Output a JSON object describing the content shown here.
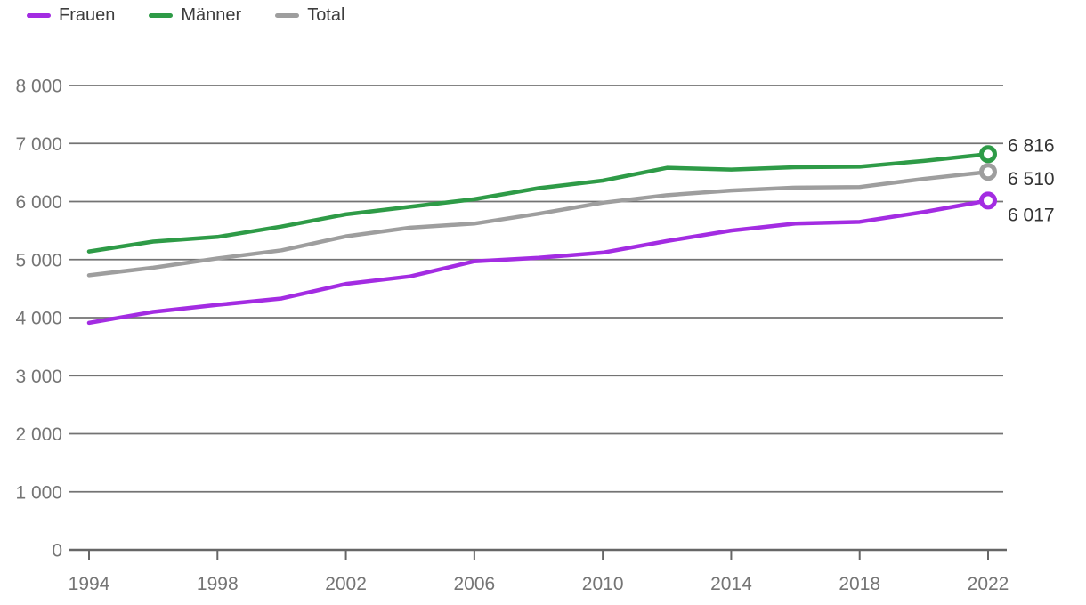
{
  "chart_data": {
    "type": "line",
    "title": "",
    "xlabel": "",
    "ylabel": "",
    "x_years": [
      1994,
      1996,
      1998,
      2000,
      2002,
      2004,
      2006,
      2008,
      2010,
      2012,
      2014,
      2016,
      2018,
      2020,
      2022
    ],
    "series": [
      {
        "name": "Frauen",
        "color": "#a32ce2",
        "values": [
          3910,
          4100,
          4220,
          4330,
          4580,
          4710,
          4970,
          5030,
          5120,
          5320,
          5500,
          5620,
          5650,
          5820,
          6017
        ],
        "end_label": "6 017"
      },
      {
        "name": "Männer",
        "color": "#2e9b47",
        "values": [
          5140,
          5310,
          5390,
          5570,
          5780,
          5910,
          6040,
          6230,
          6360,
          6580,
          6550,
          6590,
          6600,
          6700,
          6816
        ],
        "end_label": "6 816"
      },
      {
        "name": "Total",
        "color": "#9e9e9e",
        "values": [
          4730,
          4860,
          5020,
          5160,
          5400,
          5550,
          5620,
          5790,
          5980,
          6110,
          6190,
          6240,
          6250,
          6390,
          6510
        ],
        "end_label": "6 510"
      }
    ],
    "ylim": [
      0,
      8000
    ],
    "ytick_step": 1000,
    "yticks_labels": [
      "0",
      "1 000",
      "2 000",
      "3 000",
      "4 000",
      "5 000",
      "6 000",
      "7 000",
      "8 000"
    ],
    "xticks": [
      1994,
      1998,
      2002,
      2006,
      2010,
      2014,
      2018,
      2022
    ],
    "grid": "horizontal",
    "legend_position": "top-left",
    "colors": {
      "axis_text": "#757575",
      "gridline": "#737373",
      "baseline": "#666666",
      "end_label_text": "#333333",
      "marker_fill": "#ffffff"
    },
    "layout": {
      "end_label_dy": {
        "Frauen": 23,
        "Männer": -3,
        "Total": 15
      }
    }
  }
}
